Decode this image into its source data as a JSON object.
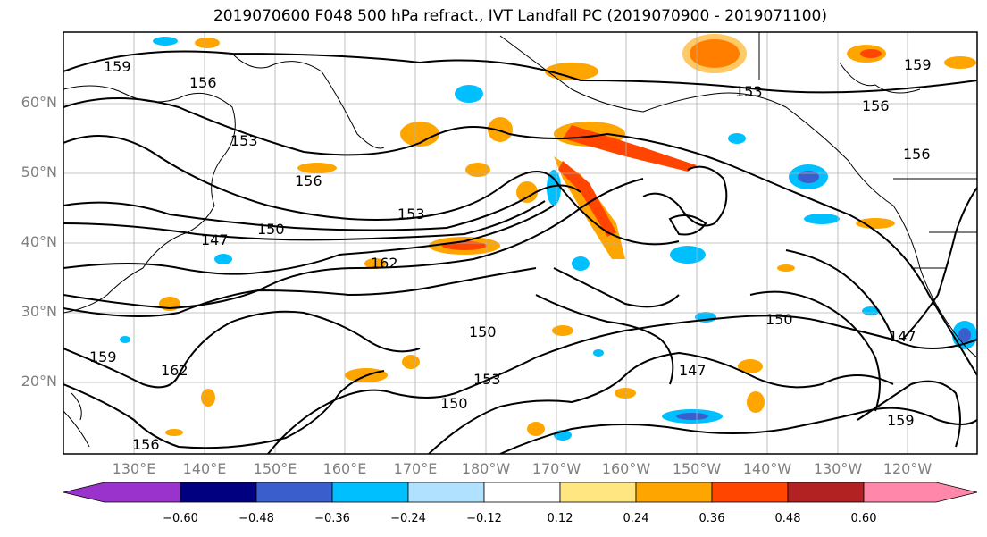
{
  "title": "2019070600 F048 500 hPa refract., IVT Landfall PC (2019070900 - 2019071100)",
  "map": {
    "lat_labels": [
      "60°N",
      "50°N",
      "40°N",
      "30°N",
      "20°N"
    ],
    "lon_labels": [
      "130°E",
      "140°E",
      "150°E",
      "160°E",
      "170°E",
      "180°W",
      "170°W",
      "160°W",
      "150°W",
      "140°W",
      "130°W",
      "120°W"
    ],
    "contour_labels": [
      "159",
      "156",
      "153",
      "150",
      "147",
      "162",
      "156",
      "153",
      "150",
      "159",
      "156",
      "153",
      "150",
      "147",
      "162",
      "159",
      "156",
      "153",
      "150",
      "147",
      "156",
      "159"
    ],
    "land_color": "#000000"
  },
  "colorbar": {
    "tick_labels": [
      "−0.60",
      "−0.48",
      "−0.36",
      "−0.24",
      "−0.12",
      "0.12",
      "0.24",
      "0.36",
      "0.48",
      "0.60"
    ],
    "colors": [
      "#9933cc",
      "#000080",
      "#3a5fcd",
      "#00bfff",
      "#b0e2ff",
      "#ffffff",
      "#ffe680",
      "#ffa500",
      "#ff4500",
      "#b22222",
      "#ff88aa"
    ]
  }
}
